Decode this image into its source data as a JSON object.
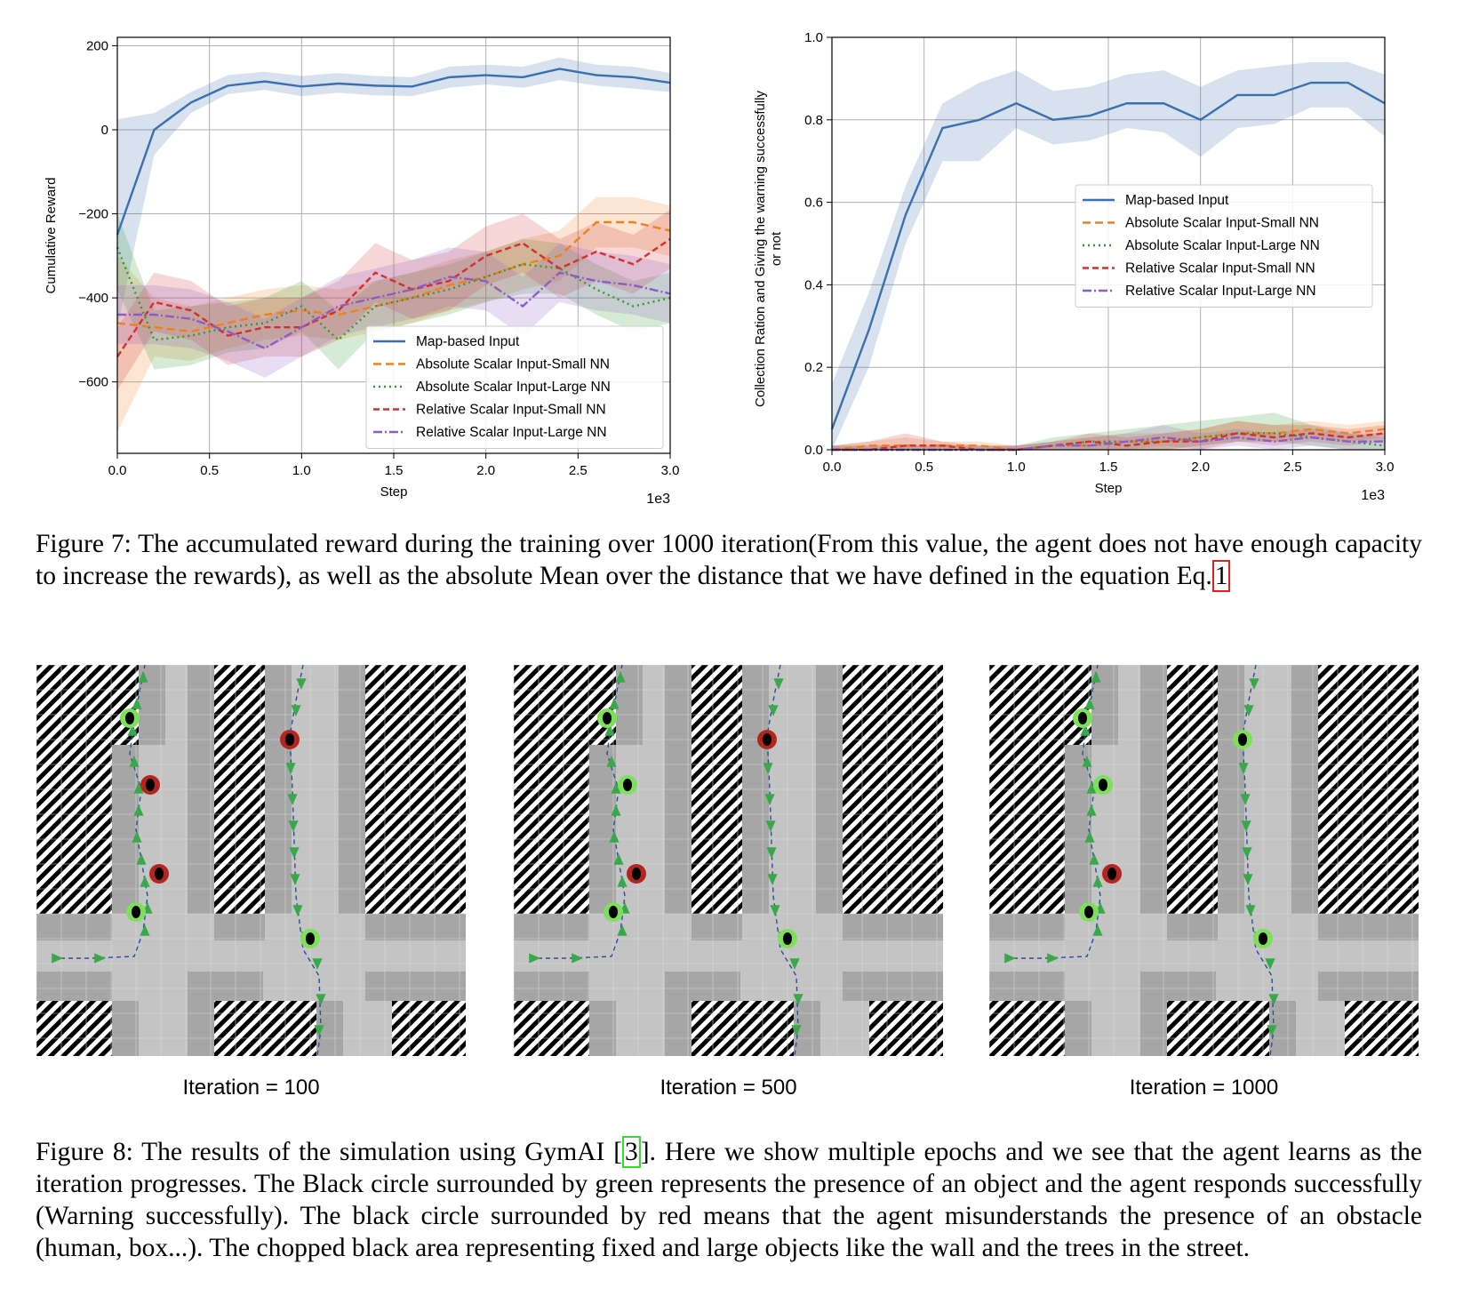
{
  "chart_data": [
    {
      "type": "line",
      "ylabel": "Cumulative Reward",
      "xlabel": "Step",
      "x_multiplier_label": "1e3",
      "xlim": [
        0,
        3.0
      ],
      "ylim": [
        -770,
        220
      ],
      "xticks": [
        "0.0",
        "0.5",
        "1.0",
        "1.5",
        "2.0",
        "2.5",
        "3.0"
      ],
      "yticks": [
        200,
        0,
        -200,
        -400,
        -600
      ],
      "ytick_labels": [
        "200",
        "0",
        "−200",
        "−400",
        "−600"
      ],
      "grid": true,
      "legend_position": "lower-right",
      "x": [
        0,
        0.2,
        0.4,
        0.6,
        0.8,
        1.0,
        1.2,
        1.4,
        1.6,
        1.8,
        2.0,
        2.2,
        2.4,
        2.6,
        2.8,
        3.0
      ],
      "series": [
        {
          "name": "Map-based Input",
          "color": "#3a6fb0",
          "dash": "solid",
          "values": [
            -250,
            0,
            65,
            105,
            115,
            103,
            110,
            105,
            103,
            125,
            130,
            125,
            145,
            130,
            125,
            112
          ],
          "band_low": [
            -470,
            -60,
            40,
            85,
            95,
            80,
            88,
            82,
            80,
            100,
            108,
            100,
            118,
            105,
            98,
            90
          ],
          "band_high": [
            25,
            40,
            90,
            130,
            138,
            128,
            135,
            128,
            125,
            150,
            155,
            150,
            172,
            155,
            150,
            135
          ]
        },
        {
          "name": "Absolute Scalar Input-Small NN",
          "color": "#f07f1e",
          "dash": "9,5",
          "values": [
            -460,
            -470,
            -480,
            -460,
            -440,
            -430,
            -440,
            -420,
            -400,
            -370,
            -350,
            -320,
            -300,
            -220,
            -220,
            -240
          ],
          "band_low": [
            -720,
            -540,
            -550,
            -520,
            -500,
            -490,
            -500,
            -480,
            -460,
            -430,
            -410,
            -380,
            -360,
            -280,
            -280,
            -300
          ],
          "band_high": [
            -300,
            -400,
            -420,
            -400,
            -380,
            -370,
            -380,
            -360,
            -340,
            -310,
            -290,
            -260,
            -240,
            -160,
            -160,
            -180
          ]
        },
        {
          "name": "Absolute Scalar Input-Large NN",
          "color": "#2e9b2e",
          "dash": "2,4",
          "values": [
            -280,
            -500,
            -490,
            -470,
            -460,
            -420,
            -500,
            -420,
            -400,
            -380,
            -350,
            -320,
            -330,
            -380,
            -420,
            -400
          ],
          "band_low": [
            -380,
            -570,
            -560,
            -530,
            -520,
            -480,
            -570,
            -480,
            -460,
            -440,
            -410,
            -390,
            -390,
            -440,
            -480,
            -460
          ],
          "band_high": [
            -200,
            -430,
            -420,
            -410,
            -400,
            -360,
            -430,
            -360,
            -340,
            -320,
            -290,
            -260,
            -270,
            -320,
            -360,
            -340
          ]
        },
        {
          "name": "Relative Scalar Input-Small NN",
          "color": "#d03030",
          "dash": "7,4",
          "values": [
            -540,
            -410,
            -430,
            -490,
            -470,
            -470,
            -430,
            -340,
            -380,
            -360,
            -300,
            -270,
            -330,
            -290,
            -320,
            -260
          ],
          "band_low": [
            -620,
            -480,
            -500,
            -560,
            -540,
            -540,
            -500,
            -410,
            -450,
            -430,
            -370,
            -340,
            -400,
            -360,
            -390,
            -330
          ],
          "band_high": [
            -470,
            -340,
            -360,
            -420,
            -400,
            -400,
            -360,
            -270,
            -310,
            -290,
            -230,
            -200,
            -260,
            -220,
            -250,
            -190
          ]
        },
        {
          "name": "Relative Scalar Input-Large NN",
          "color": "#8b5cc8",
          "dash": "10,3,2,3",
          "values": [
            -440,
            -440,
            -450,
            -480,
            -520,
            -470,
            -420,
            -400,
            -380,
            -350,
            -360,
            -420,
            -340,
            -360,
            -370,
            -390
          ],
          "band_low": [
            -510,
            -510,
            -520,
            -550,
            -590,
            -540,
            -490,
            -470,
            -450,
            -420,
            -430,
            -490,
            -410,
            -430,
            -440,
            -460
          ],
          "band_high": [
            -370,
            -370,
            -380,
            -410,
            -450,
            -400,
            -350,
            -330,
            -310,
            -280,
            -290,
            -350,
            -270,
            -290,
            -300,
            -320
          ]
        }
      ]
    },
    {
      "type": "line",
      "ylabel": "Collection Ration and Giving the warning successfully or not",
      "xlabel": "Step",
      "x_multiplier_label": "1e3",
      "xlim": [
        0,
        3.0
      ],
      "ylim": [
        0,
        1.0
      ],
      "xticks": [
        "0.0",
        "0.5",
        "1.0",
        "1.5",
        "2.0",
        "2.5",
        "3.0"
      ],
      "yticks": [
        0.0,
        0.2,
        0.4,
        0.6,
        0.8,
        1.0
      ],
      "ytick_labels": [
        "0.0",
        "0.2",
        "0.4",
        "0.6",
        "0.8",
        "1.0"
      ],
      "grid": true,
      "legend_position": "center-right",
      "x": [
        0,
        0.2,
        0.4,
        0.6,
        0.8,
        1.0,
        1.2,
        1.4,
        1.6,
        1.8,
        2.0,
        2.2,
        2.4,
        2.6,
        2.8,
        3.0
      ],
      "series": [
        {
          "name": "Map-based Input",
          "color": "#3a6fb0",
          "dash": "solid",
          "values": [
            0.05,
            0.29,
            0.57,
            0.78,
            0.8,
            0.84,
            0.8,
            0.81,
            0.84,
            0.84,
            0.8,
            0.86,
            0.86,
            0.89,
            0.89,
            0.84
          ],
          "band_low": [
            0.0,
            0.2,
            0.5,
            0.7,
            0.7,
            0.78,
            0.74,
            0.75,
            0.78,
            0.77,
            0.71,
            0.78,
            0.79,
            0.83,
            0.83,
            0.76
          ],
          "band_high": [
            0.16,
            0.38,
            0.64,
            0.84,
            0.89,
            0.92,
            0.87,
            0.88,
            0.91,
            0.92,
            0.88,
            0.92,
            0.93,
            0.94,
            0.94,
            0.91
          ]
        },
        {
          "name": "Absolute Scalar Input-Small NN",
          "color": "#f07f1e",
          "dash": "9,5",
          "values": [
            0.0,
            0.01,
            0.01,
            0.01,
            0.01,
            0.0,
            0.01,
            0.01,
            0.02,
            0.02,
            0.03,
            0.04,
            0.04,
            0.05,
            0.04,
            0.05
          ],
          "band_low": [
            0.0,
            0.0,
            0.0,
            0.0,
            0.0,
            0.0,
            0.0,
            0.0,
            0.0,
            0.0,
            0.01,
            0.02,
            0.02,
            0.03,
            0.02,
            0.03
          ],
          "band_high": [
            0.01,
            0.02,
            0.03,
            0.02,
            0.02,
            0.01,
            0.02,
            0.03,
            0.04,
            0.04,
            0.05,
            0.07,
            0.06,
            0.07,
            0.06,
            0.07
          ]
        },
        {
          "name": "Absolute Scalar Input-Large NN",
          "color": "#2e9b2e",
          "dash": "2,4",
          "values": [
            0.0,
            0.0,
            0.0,
            0.0,
            0.0,
            0.0,
            0.01,
            0.02,
            0.02,
            0.02,
            0.03,
            0.04,
            0.04,
            0.03,
            0.02,
            0.01
          ],
          "band_low": [
            0.0,
            0.0,
            0.0,
            0.0,
            0.0,
            0.0,
            0.0,
            0.0,
            0.0,
            0.0,
            0.01,
            0.02,
            0.02,
            0.01,
            0.0,
            0.0
          ],
          "band_high": [
            0.01,
            0.01,
            0.01,
            0.01,
            0.01,
            0.01,
            0.03,
            0.04,
            0.05,
            0.06,
            0.07,
            0.08,
            0.09,
            0.06,
            0.04,
            0.03
          ]
        },
        {
          "name": "Relative Scalar Input-Small NN",
          "color": "#d03030",
          "dash": "7,4",
          "values": [
            0.0,
            0.0,
            0.01,
            0.01,
            0.0,
            0.0,
            0.01,
            0.02,
            0.01,
            0.02,
            0.02,
            0.04,
            0.03,
            0.04,
            0.03,
            0.04
          ],
          "band_low": [
            0.0,
            0.0,
            0.0,
            0.0,
            0.0,
            0.0,
            0.0,
            0.0,
            0.0,
            0.0,
            0.0,
            0.02,
            0.01,
            0.02,
            0.01,
            0.02
          ],
          "band_high": [
            0.01,
            0.02,
            0.04,
            0.02,
            0.01,
            0.01,
            0.02,
            0.04,
            0.03,
            0.04,
            0.05,
            0.07,
            0.06,
            0.06,
            0.05,
            0.06
          ]
        },
        {
          "name": "Relative Scalar Input-Large NN",
          "color": "#8b5cc8",
          "dash": "10,3,2,3",
          "values": [
            0.0,
            0.0,
            0.0,
            0.0,
            0.0,
            0.0,
            0.01,
            0.01,
            0.02,
            0.03,
            0.02,
            0.03,
            0.02,
            0.03,
            0.02,
            0.02
          ],
          "band_low": [
            0.0,
            0.0,
            0.0,
            0.0,
            0.0,
            0.0,
            0.0,
            0.0,
            0.0,
            0.01,
            0.0,
            0.01,
            0.0,
            0.01,
            0.0,
            0.0
          ],
          "band_high": [
            0.01,
            0.01,
            0.01,
            0.01,
            0.01,
            0.01,
            0.02,
            0.03,
            0.04,
            0.06,
            0.04,
            0.05,
            0.04,
            0.05,
            0.04,
            0.04
          ]
        }
      ]
    }
  ],
  "captions": {
    "fig7_prefix": "Figure 7: The accumulated reward during the training over 1000 iteration(From this value, the agent does not have enough capacity to increase the rewards), as well as the absolute Mean over the distance that we have defined in the equation Eq.",
    "fig7_ref": "1",
    "fig8_prefix": "Figure 8: The results of the simulation using GymAI [",
    "fig8_ref": "3",
    "fig8_suffix": "]. Here we show multiple epochs and we see that the agent learns as the iteration progresses. The Black circle surrounded by green represents the presence of an object and the agent responds successfully (Warning successfully). The black circle surrounded by red means that the agent misunderstands the presence of an obstacle (human, box...). The chopped black area representing fixed and large objects like the wall and the trees in the street."
  },
  "simulations": [
    {
      "label": "Iteration = 100",
      "markers": [
        "green",
        "red",
        "red",
        "green",
        "red",
        "green"
      ]
    },
    {
      "label": "Iteration = 500",
      "markers": [
        "green",
        "green",
        "red",
        "green",
        "red",
        "green"
      ]
    },
    {
      "label": "Iteration = 1000",
      "markers": [
        "green",
        "green",
        "red",
        "green",
        "green",
        "green"
      ]
    }
  ],
  "colors": {
    "hatch": "#000000",
    "road_light": "#c4c4c4",
    "road_dark": "#a6a6a6",
    "agent_arrow": "#39a84a",
    "path_line": "#2a4d9a",
    "ring_green": "#7ee05a",
    "ring_red": "#b3261e"
  }
}
